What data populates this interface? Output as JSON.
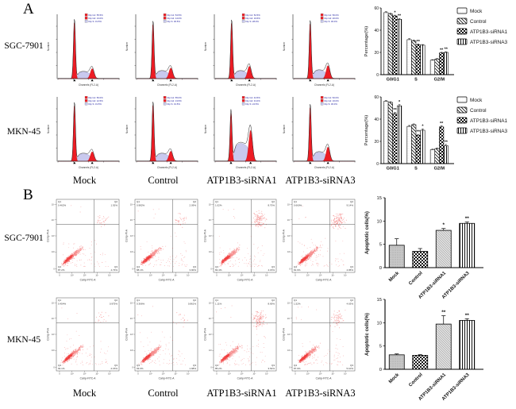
{
  "figure": {
    "panel_a_label": "A",
    "panel_b_label": "B",
    "rows": [
      "SGC-7901",
      "MKN-45"
    ],
    "column_labels": [
      "Mock",
      "Control",
      "ATP1B3-siRNA1",
      "ATP1B3-siRNA3"
    ]
  },
  "histograms": {
    "axis": {
      "x": "Channels (FL2-A)",
      "y": "Number"
    },
    "legend_labels": [
      "Dip G1",
      "Dip G2",
      "Dip S"
    ],
    "colors": {
      "g1_fill": "#ed1c24",
      "g2_fill": "#ed1c24",
      "s_fill": "#c9c9ee",
      "legend_text": "#2020a0"
    },
    "rows": [
      {
        "cell_line": "SGC-7901",
        "plots": [
          {
            "g1": "55.5%",
            "g2": "13.0%",
            "s": "31.5%",
            "g1h": 0.96,
            "g2h": 0.17,
            "sh": 0.09,
            "g1x": 0.27,
            "g2x": 0.56
          },
          {
            "g1": "54.5%",
            "g2": "14.0%",
            "s": "30.5%",
            "g1h": 0.93,
            "g2h": 0.18,
            "sh": 0.1,
            "g1x": 0.27,
            "g2x": 0.56
          },
          {
            "g1": "52.5%",
            "g2": "19.5%",
            "s": "28.0%",
            "g1h": 0.95,
            "g2h": 0.21,
            "sh": 0.1,
            "g1x": 0.27,
            "g2x": 0.56
          },
          {
            "g1": "50.0%",
            "g2": "20.0%",
            "s": "30.0%",
            "g1h": 0.94,
            "g2h": 0.22,
            "sh": 0.11,
            "g1x": 0.27,
            "g2x": 0.56
          }
        ]
      },
      {
        "cell_line": "MKN-45",
        "plots": [
          {
            "g1": "56.0%",
            "g2": "12.5%",
            "s": "31.5%",
            "g1h": 0.95,
            "g2h": 0.16,
            "sh": 0.1,
            "g1x": 0.27,
            "g2x": 0.56
          },
          {
            "g1": "55.0%",
            "g2": "13.5%",
            "s": "31.5%",
            "g1h": 0.96,
            "g2h": 0.17,
            "sh": 0.1,
            "g1x": 0.27,
            "g2x": 0.56
          },
          {
            "g1": "44.5%",
            "g2": "31.0%",
            "s": "24.5%",
            "g1h": 0.82,
            "g2h": 0.52,
            "sh": 0.24,
            "g1x": 0.26,
            "g2x": 0.58
          },
          {
            "g1": "52.0%",
            "g2": "16.0%",
            "s": "30.0%",
            "g1h": 0.92,
            "g2h": 0.24,
            "sh": 0.12,
            "g1x": 0.27,
            "g2x": 0.56
          }
        ]
      }
    ]
  },
  "scatters": {
    "axis": {
      "x": "Comp-FITC-A",
      "y": "Comp-PI-A"
    },
    "ticks": [
      "0",
      "10²",
      "10³",
      "10⁴",
      "10⁵"
    ],
    "rows": [
      {
        "cell_line": "SGC-7901",
        "plots": [
          {
            "q1": "0.462%",
            "q2": "1.92%",
            "q3": "4.73%",
            "q4": "87.2%"
          },
          {
            "q1": "0.982%",
            "q2": "2.09%",
            "q3": "3.90%",
            "q4": "88.1%"
          },
          {
            "q1": "1.02%",
            "q2": "8.70%",
            "q3": "4.15%",
            "q4": "82.4%"
          },
          {
            "q1": "0.660%",
            "q2": "9.14%",
            "q3": "4.95%",
            "q4": "81.6%"
          }
        ]
      },
      {
        "cell_line": "MKN-45",
        "plots": [
          {
            "q1": "0.454%",
            "q2": "0.975%",
            "q3": "2.15%",
            "q4": "92.1%"
          },
          {
            "q1": "0.366%",
            "q2": "0.861%",
            "q3": "1.98%",
            "q4": "93.0%"
          },
          {
            "q1": "1.11%",
            "q2": "8.69%",
            "q3": "3.54%",
            "q4": "85.2%"
          },
          {
            "q1": "1.52%",
            "q2": "4.63%",
            "q3": "5.10%",
            "q4": "87.9%"
          }
        ]
      }
    ]
  },
  "chart_data": [
    {
      "id": "cellcycle-sgc7901",
      "type": "bar",
      "cell_line": "SGC-7901",
      "ylabel": "Percentage(%)",
      "ylim": [
        0,
        60
      ],
      "yticks": [
        0,
        20,
        40,
        60
      ],
      "categories": [
        "G0/G1",
        "S",
        "G2/M"
      ],
      "legend": true,
      "legend_position": "right",
      "series": [
        {
          "name": "Mock",
          "pattern": "dots",
          "values": [
            55.8,
            31.5,
            13.0
          ],
          "errors": [
            0.8,
            0.8,
            0.5
          ],
          "sig": [
            "",
            "",
            ""
          ]
        },
        {
          "name": "Control",
          "pattern": "diag",
          "values": [
            54.5,
            30.5,
            14.0
          ],
          "errors": [
            0.8,
            0.7,
            0.5
          ],
          "sig": [
            "",
            "",
            ""
          ]
        },
        {
          "name": "ATP1B3-siRNA1",
          "pattern": "check",
          "values": [
            52.8,
            27.0,
            19.5
          ],
          "errors": [
            0.7,
            0.6,
            0.6
          ],
          "sig": [
            "*",
            "**",
            "**"
          ]
        },
        {
          "name": "ATP1B3-siRNA3",
          "pattern": "vert",
          "values": [
            49.8,
            26.5,
            20.0
          ],
          "errors": [
            0.8,
            0.6,
            0.6
          ],
          "sig": [
            "**",
            "",
            "**"
          ]
        }
      ]
    },
    {
      "id": "cellcycle-mkn45",
      "type": "bar",
      "cell_line": "MKN-45",
      "ylabel": "Percentage(%)",
      "ylim": [
        0,
        60
      ],
      "yticks": [
        0,
        20,
        40,
        60
      ],
      "categories": [
        "G0/G1",
        "S",
        "G2/M"
      ],
      "legend": true,
      "legend_position": "right",
      "series": [
        {
          "name": "Mock",
          "pattern": "dots",
          "values": [
            56.0,
            33.5,
            12.5
          ],
          "errors": [
            0.7,
            0.8,
            0.5
          ],
          "sig": [
            "",
            "",
            ""
          ]
        },
        {
          "name": "Control",
          "pattern": "diag",
          "values": [
            55.0,
            35.0,
            13.5
          ],
          "errors": [
            0.7,
            0.7,
            0.5
          ],
          "sig": [
            "",
            "",
            ""
          ]
        },
        {
          "name": "ATP1B3-siRNA1",
          "pattern": "check",
          "values": [
            45.0,
            25.5,
            33.0
          ],
          "errors": [
            1.0,
            0.8,
            1.0
          ],
          "sig": [
            "**",
            "**",
            "**"
          ]
        },
        {
          "name": "ATP1B3-siRNA3",
          "pattern": "vert",
          "values": [
            52.0,
            30.0,
            16.0
          ],
          "errors": [
            1.0,
            1.2,
            1.2
          ],
          "sig": [
            "*",
            "*",
            "**"
          ]
        }
      ]
    },
    {
      "id": "apoptosis-sgc7901",
      "type": "bar",
      "cell_line": "SGC-7901",
      "ylabel": "Apoptotic cells(%)",
      "ylim": [
        0,
        15
      ],
      "yticks": [
        0,
        5,
        10,
        15
      ],
      "categories": [
        "Mock",
        "Control",
        "ATP1B3-siRNA1",
        "ATP1B3-siRNA3"
      ],
      "patterns": [
        "gray",
        "check",
        "dialight",
        "vert"
      ],
      "values": [
        4.8,
        3.5,
        8.0,
        9.5
      ],
      "errors": [
        1.4,
        0.6,
        0.4,
        0.3
      ],
      "sig": [
        "",
        "",
        "*",
        "**"
      ],
      "legend": false
    },
    {
      "id": "apoptosis-mkn45",
      "type": "bar",
      "cell_line": "MKN-45",
      "ylabel": "Apoptotic cells(%)",
      "ylim": [
        0,
        15
      ],
      "yticks": [
        0,
        5,
        10,
        15
      ],
      "categories": [
        "Mock",
        "Control",
        "ATP1B3-siRNA1",
        "ATP1B3-siRNA3"
      ],
      "patterns": [
        "gray",
        "check",
        "dialight",
        "vert"
      ],
      "values": [
        3.1,
        3.0,
        9.7,
        10.5
      ],
      "errors": [
        0.2,
        0.15,
        1.8,
        0.35
      ],
      "sig": [
        "",
        "",
        "**",
        "**"
      ],
      "legend": false
    }
  ],
  "significance_legend": {
    "single": "*",
    "double": "**"
  }
}
